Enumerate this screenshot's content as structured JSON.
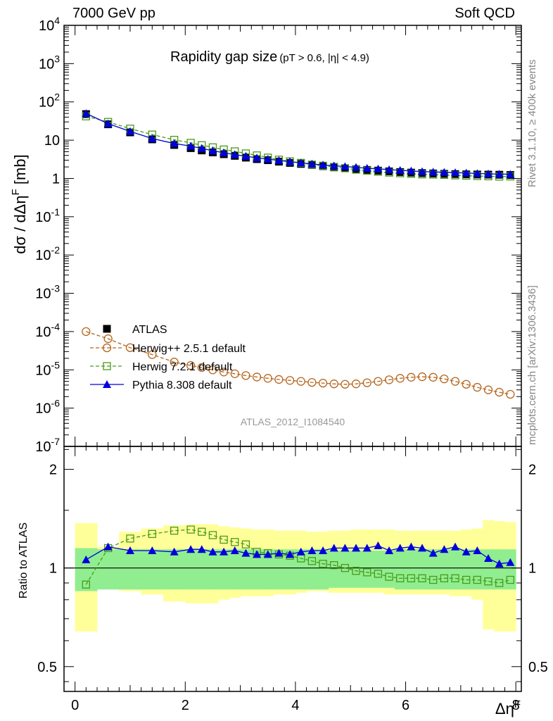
{
  "header": {
    "left": "7000 GeV pp",
    "right": "Soft QCD"
  },
  "side_text": {
    "rivet": "Rivet 3.1.10, ≥ 400k events",
    "mcplots": "mcplots.cern.ch [arXiv:1306.3436]"
  },
  "colors": {
    "atlas": "#000000",
    "herwigpp": "#b5651d",
    "herwig7": "#4a9a1a",
    "pythia": "#0000dd",
    "band_inner": "#90ee90",
    "band_outer": "#ffff99"
  },
  "chart_data": [
    {
      "type": "scatter",
      "panel": "main",
      "title": "Rapidity gap size",
      "title_sub": "(pT > 0.6, |η| < 4.9)",
      "ylabel": "dσ / dΔη^F [mb]",
      "yscale": "log",
      "ylim": [
        1e-07,
        10000.0
      ],
      "xlim": [
        -0.2,
        8.1
      ],
      "y_ticks": [
        "10^4",
        "10^3",
        "10^2",
        "10",
        "1",
        "10^-1",
        "10^-2",
        "10^-3",
        "10^-4",
        "10^-5",
        "10^-6",
        "10^-7"
      ],
      "watermark": "ATLAS_2012_I1084540",
      "legend": [
        "ATLAS",
        "Herwig++ 2.5.1 default",
        "Herwig 7.2.1 default",
        "Pythia 8.308 default"
      ],
      "x": [
        0.2,
        0.6,
        1.0,
        1.4,
        1.8,
        2.1,
        2.3,
        2.5,
        2.7,
        2.9,
        3.1,
        3.3,
        3.5,
        3.7,
        3.9,
        4.1,
        4.3,
        4.5,
        4.7,
        4.9,
        5.1,
        5.3,
        5.5,
        5.7,
        5.9,
        6.1,
        6.3,
        6.5,
        6.7,
        6.9,
        7.1,
        7.3,
        7.5,
        7.7,
        7.9
      ],
      "series": [
        {
          "name": "ATLAS",
          "values": [
            48,
            26,
            16,
            10.5,
            7.5,
            6.2,
            5.4,
            4.8,
            4.3,
            3.9,
            3.5,
            3.2,
            3.0,
            2.75,
            2.55,
            2.4,
            2.25,
            2.1,
            1.95,
            1.85,
            1.75,
            1.67,
            1.6,
            1.53,
            1.47,
            1.42,
            1.38,
            1.35,
            1.32,
            1.3,
            1.28,
            1.27,
            1.26,
            1.25,
            1.23
          ]
        },
        {
          "name": "Herwig++ 2.5.1 default",
          "values": [
            0.0001,
            6.5e-05,
            3.8e-05,
            2.5e-05,
            1.6e-05,
            1.3e-05,
            1.15e-05,
            1e-05,
            8.8e-06,
            7.9e-06,
            7.1e-06,
            6.5e-06,
            6e-06,
            5.6e-06,
            5.3e-06,
            5e-06,
            4.7e-06,
            4.5e-06,
            4.3e-06,
            4.2e-06,
            4.3e-06,
            4.6e-06,
            5e-06,
            5.5e-06,
            6e-06,
            6.4e-06,
            6.6e-06,
            6.4e-06,
            5.8e-06,
            5e-06,
            4.2e-06,
            3.5e-06,
            3e-06,
            2.6e-06,
            2.3e-06
          ]
        },
        {
          "name": "Herwig 7.2.1 default",
          "values": [
            42,
            30,
            20,
            14,
            10.2,
            8.5,
            7.4,
            6.5,
            5.7,
            5.1,
            4.5,
            4.0,
            3.5,
            3.1,
            2.8,
            2.55,
            2.3,
            2.15,
            2.0,
            1.85,
            1.7,
            1.6,
            1.5,
            1.42,
            1.37,
            1.32,
            1.28,
            1.26,
            1.24,
            1.2,
            1.18,
            1.16,
            1.14,
            1.12,
            1.13
          ]
        },
        {
          "name": "Pythia 8.308 default",
          "values": [
            50,
            27,
            17,
            11,
            8.2,
            7.0,
            6.1,
            5.3,
            4.7,
            4.2,
            3.8,
            3.45,
            3.2,
            2.95,
            2.75,
            2.55,
            2.4,
            2.25,
            2.15,
            2.05,
            1.95,
            1.85,
            1.78,
            1.7,
            1.63,
            1.57,
            1.52,
            1.48,
            1.45,
            1.42,
            1.39,
            1.35,
            1.32,
            1.3,
            1.29
          ]
        }
      ]
    },
    {
      "type": "scatter",
      "panel": "ratio",
      "ylabel": "Ratio to ATLAS",
      "xlabel": "Δη^F",
      "yscale": "log",
      "ylim": [
        0.42,
        2.35
      ],
      "xlim": [
        -0.2,
        8.1
      ],
      "x_ticks": [
        0,
        2,
        4,
        6,
        8
      ],
      "y_ticks": [
        0.5,
        1,
        2
      ],
      "x": [
        0.2,
        0.6,
        1.0,
        1.4,
        1.8,
        2.1,
        2.3,
        2.5,
        2.7,
        2.9,
        3.1,
        3.3,
        3.5,
        3.7,
        3.9,
        4.1,
        4.3,
        4.5,
        4.7,
        4.9,
        5.1,
        5.3,
        5.5,
        5.7,
        5.9,
        6.1,
        6.3,
        6.5,
        6.7,
        6.9,
        7.1,
        7.3,
        7.5,
        7.7,
        7.9
      ],
      "bin_edges": [
        0.0,
        0.4,
        0.8,
        1.2,
        1.6,
        2.0,
        2.2,
        2.4,
        2.6,
        2.8,
        3.0,
        3.2,
        3.4,
        3.6,
        3.8,
        4.0,
        4.2,
        4.4,
        4.6,
        4.8,
        5.0,
        5.2,
        5.4,
        5.6,
        5.8,
        6.0,
        6.2,
        6.4,
        6.6,
        6.8,
        7.0,
        7.2,
        7.4,
        7.6,
        7.8,
        8.0
      ],
      "band_inner": {
        "low": [
          0.85,
          0.86,
          0.86,
          0.86,
          0.86,
          0.86,
          0.86,
          0.86,
          0.86,
          0.86,
          0.86,
          0.86,
          0.86,
          0.86,
          0.86,
          0.86,
          0.86,
          0.86,
          0.87,
          0.87,
          0.87,
          0.87,
          0.87,
          0.87,
          0.86,
          0.86,
          0.86,
          0.86,
          0.86,
          0.86,
          0.86,
          0.86,
          0.86,
          0.86,
          0.86
        ],
        "high": [
          1.15,
          1.14,
          1.14,
          1.14,
          1.14,
          1.14,
          1.14,
          1.14,
          1.14,
          1.14,
          1.14,
          1.14,
          1.14,
          1.14,
          1.14,
          1.14,
          1.14,
          1.14,
          1.13,
          1.13,
          1.13,
          1.13,
          1.13,
          1.13,
          1.14,
          1.14,
          1.14,
          1.14,
          1.14,
          1.14,
          1.14,
          1.14,
          1.14,
          1.14,
          1.14
        ]
      },
      "band_outer": {
        "low": [
          0.64,
          0.93,
          0.85,
          0.83,
          0.79,
          0.78,
          0.78,
          0.78,
          0.8,
          0.81,
          0.82,
          0.82,
          0.82,
          0.83,
          0.83,
          0.84,
          0.85,
          0.85,
          0.84,
          0.84,
          0.84,
          0.84,
          0.84,
          0.83,
          0.83,
          0.83,
          0.83,
          0.83,
          0.83,
          0.82,
          0.82,
          0.8,
          0.65,
          0.64,
          0.64
        ],
        "high": [
          1.37,
          1.16,
          1.29,
          1.32,
          1.35,
          1.36,
          1.36,
          1.36,
          1.34,
          1.33,
          1.32,
          1.31,
          1.31,
          1.3,
          1.3,
          1.3,
          1.29,
          1.29,
          1.3,
          1.3,
          1.31,
          1.31,
          1.31,
          1.31,
          1.3,
          1.3,
          1.3,
          1.3,
          1.3,
          1.3,
          1.31,
          1.32,
          1.4,
          1.39,
          1.38
        ]
      },
      "series": [
        {
          "name": "Herwig 7.2.1 default",
          "values": [
            0.89,
            1.15,
            1.23,
            1.27,
            1.3,
            1.31,
            1.29,
            1.26,
            1.22,
            1.2,
            1.18,
            1.12,
            1.11,
            1.1,
            1.09,
            1.07,
            1.05,
            1.03,
            1.02,
            1.0,
            0.98,
            0.97,
            0.96,
            0.94,
            0.93,
            0.93,
            0.93,
            0.92,
            0.93,
            0.93,
            0.92,
            0.92,
            0.91,
            0.9,
            0.92
          ]
        },
        {
          "name": "Pythia 8.308 default",
          "values": [
            1.06,
            1.16,
            1.13,
            1.13,
            1.12,
            1.14,
            1.14,
            1.12,
            1.12,
            1.13,
            1.11,
            1.1,
            1.1,
            1.11,
            1.1,
            1.12,
            1.13,
            1.13,
            1.15,
            1.15,
            1.15,
            1.15,
            1.17,
            1.13,
            1.15,
            1.16,
            1.15,
            1.11,
            1.14,
            1.16,
            1.12,
            1.13,
            1.07,
            1.03,
            1.04
          ]
        }
      ]
    }
  ]
}
